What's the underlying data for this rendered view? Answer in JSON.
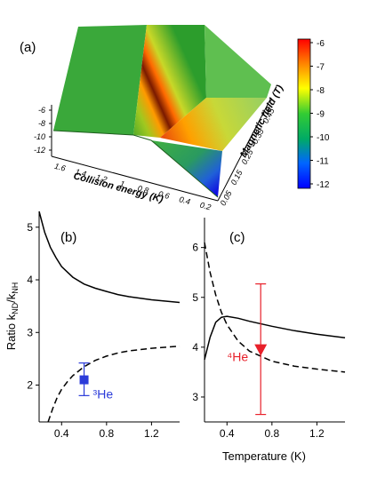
{
  "chart_data": [
    {
      "type": "surface",
      "panel_label": "(a)",
      "xlabel": "Collision energy (K)",
      "ylabel": "Magnetic field (T)",
      "x_ticks": [
        "1.6",
        "1.4",
        "1.2",
        "1",
        "0.8",
        "0.6",
        "0.4",
        "0.2"
      ],
      "y_ticks": [
        "0.05",
        "0.15",
        "0.25",
        "0.35",
        "0.45"
      ],
      "z_ticks": [
        "-6",
        "-8",
        "-10",
        "-12"
      ],
      "colorbar_ticks": [
        "-6",
        "-7",
        "-8",
        "-9",
        "-10",
        "-11",
        "-12"
      ],
      "colorbar_colors": [
        "#ff0000",
        "#ff8800",
        "#ffff00",
        "#33cc33",
        "#00aa66",
        "#0066ff",
        "#0000ff"
      ]
    },
    {
      "type": "line",
      "panel_label": "(b)",
      "ylabel": "Ratio k_ND/k_NH",
      "xlim": [
        0.2,
        1.45
      ],
      "ylim": [
        1.3,
        5.3
      ],
      "x_ticks": [
        0.4,
        0.8,
        1.2
      ],
      "y_ticks": [
        2,
        3,
        4,
        5
      ],
      "series": [
        {
          "style": "solid",
          "x": [
            0.2,
            0.25,
            0.3,
            0.35,
            0.4,
            0.5,
            0.6,
            0.7,
            0.8,
            0.9,
            1.0,
            1.2,
            1.45
          ],
          "y": [
            5.3,
            4.9,
            4.62,
            4.42,
            4.25,
            4.05,
            3.92,
            3.84,
            3.78,
            3.72,
            3.68,
            3.62,
            3.57
          ]
        },
        {
          "style": "dashed",
          "x": [
            0.28,
            0.32,
            0.36,
            0.4,
            0.45,
            0.5,
            0.6,
            0.7,
            0.8,
            0.9,
            1.0,
            1.2,
            1.45
          ],
          "y": [
            1.3,
            1.55,
            1.76,
            1.92,
            2.06,
            2.18,
            2.35,
            2.47,
            2.55,
            2.61,
            2.65,
            2.7,
            2.74
          ]
        }
      ],
      "points": [
        {
          "label": "³He",
          "x": 0.6,
          "y": 2.1,
          "err_low": 1.8,
          "err_high": 2.42,
          "color": "#2b3bd9",
          "marker": "square"
        }
      ]
    },
    {
      "type": "line",
      "panel_label": "(c)",
      "xlabel": "Temperature (K)",
      "xlim": [
        0.2,
        1.45
      ],
      "ylim": [
        2.5,
        6.6
      ],
      "x_ticks": [
        0.4,
        0.8,
        1.2
      ],
      "y_ticks": [
        3,
        4,
        5,
        6
      ],
      "series": [
        {
          "style": "solid",
          "x": [
            0.2,
            0.25,
            0.3,
            0.35,
            0.4,
            0.5,
            0.6,
            0.8,
            1.0,
            1.2,
            1.45
          ],
          "y": [
            3.75,
            4.2,
            4.5,
            4.6,
            4.62,
            4.58,
            4.52,
            4.42,
            4.33,
            4.26,
            4.19
          ]
        },
        {
          "style": "dashed",
          "x": [
            0.2,
            0.25,
            0.3,
            0.35,
            0.4,
            0.5,
            0.6,
            0.8,
            1.0,
            1.2,
            1.45
          ],
          "y": [
            6.1,
            5.5,
            5.05,
            4.7,
            4.45,
            4.12,
            3.92,
            3.72,
            3.62,
            3.56,
            3.5
          ]
        }
      ],
      "points": [
        {
          "label": "⁴He",
          "x": 0.7,
          "y": 3.95,
          "err_low": 2.65,
          "err_high": 5.27,
          "color": "#e8202a",
          "marker": "triangle-down"
        }
      ]
    }
  ]
}
